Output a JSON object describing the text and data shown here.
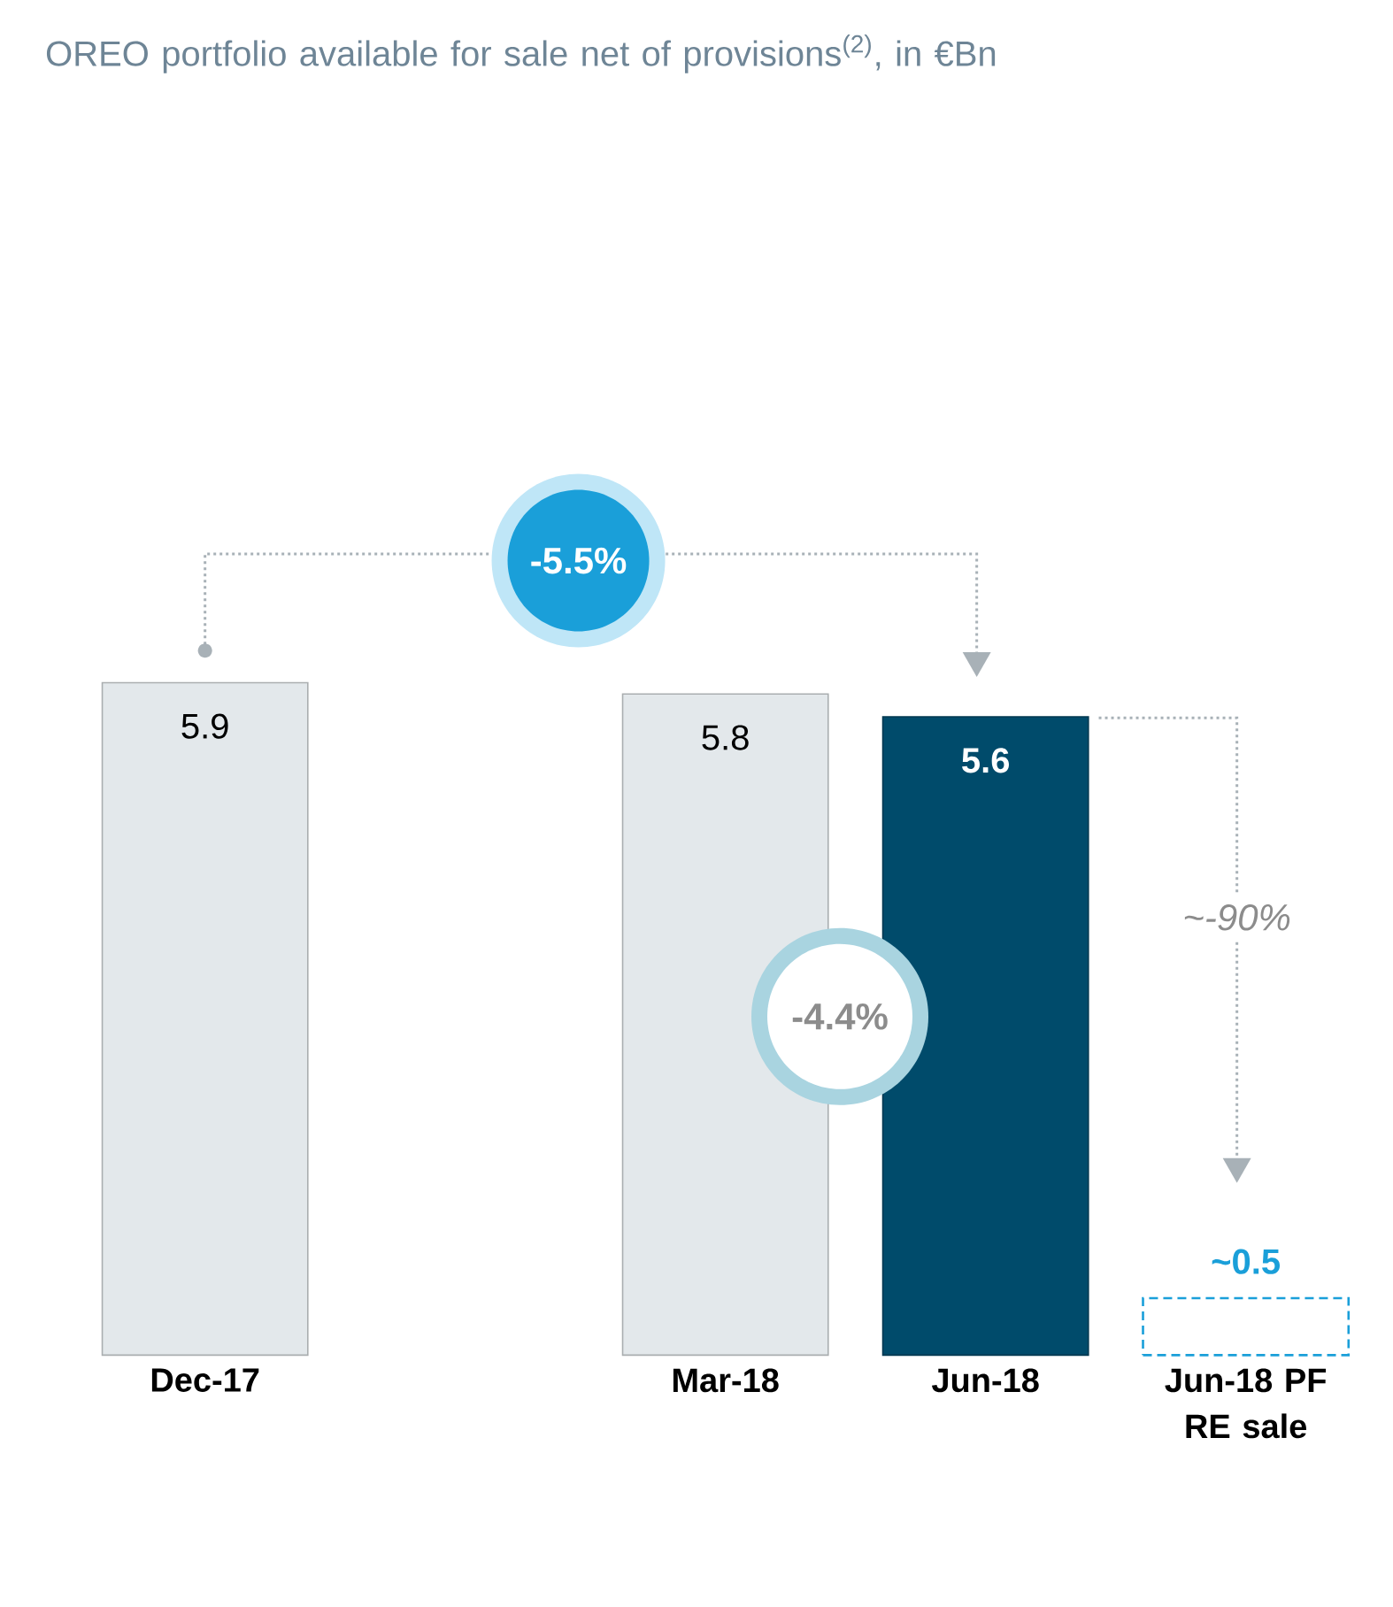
{
  "chart_data": {
    "type": "bar",
    "title": "OREO portfolio available for sale net of provisions$^{(2)}$, in €Bn",
    "categories": [
      "Dec-17",
      null,
      "Mar-18",
      "Jun-18",
      "Jun-18 PF RE sale"
    ],
    "series": [
      {
        "values": [
          5.9,
          null,
          5.8,
          5.6,
          null
        ],
        "colors": [
          "#e3e8eb",
          null,
          "#e3e8eb",
          "#004b6b",
          null
        ],
        "value_labels": [
          "5.9",
          null,
          "5.8",
          "5.6",
          null
        ]
      },
      {
        "values": [
          null,
          null,
          null,
          null,
          0.5
        ],
        "color": "#1a9fd9",
        "line_style": "dashed",
        "value_labels": [
          null,
          null,
          null,
          null,
          "~0.5"
        ]
      }
    ],
    "annotations": [
      "-5.5%",
      "-4.4%",
      "~-90%"
    ]
  }
}
